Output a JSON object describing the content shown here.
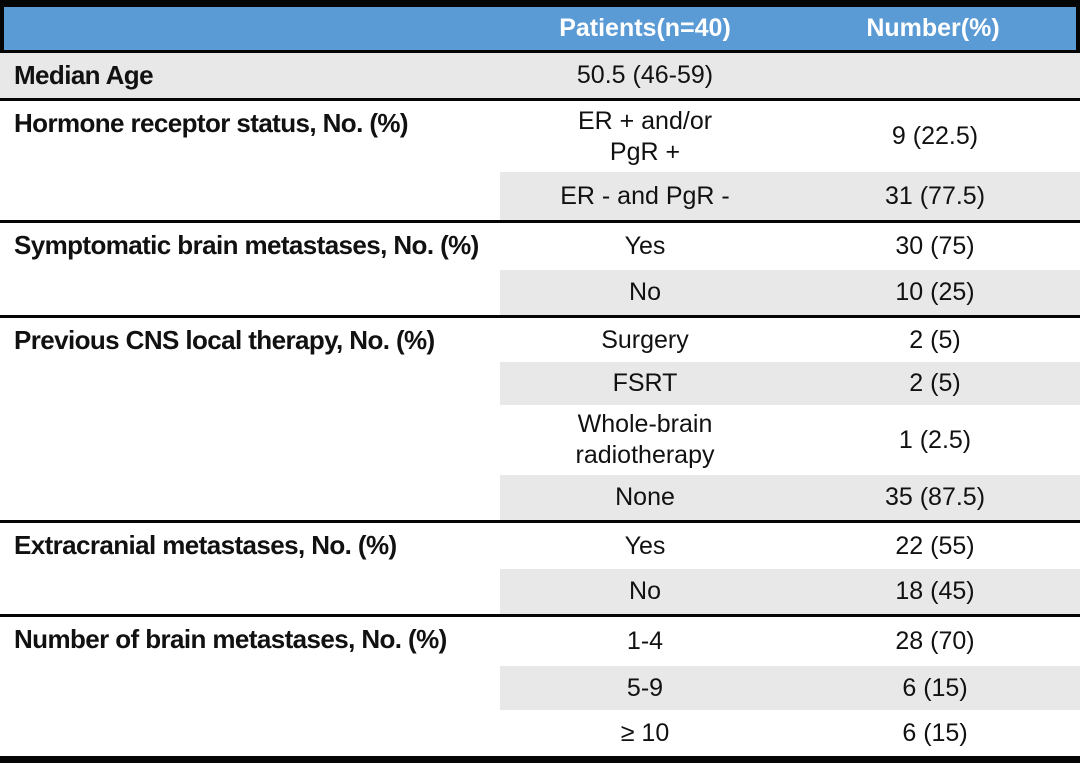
{
  "table": {
    "title": "Patient characteristics table",
    "colors": {
      "header_bg": "#5B9BD5",
      "header_text": "#FFFFFF",
      "stripe": "#E9E8E8",
      "border": "#050505"
    },
    "header": {
      "col1": "",
      "patients": "Patients(n=40)",
      "number": "Number(%)"
    },
    "sections": [
      {
        "label": "Median Age",
        "rows": [
          {
            "value": "50.5 (46-59)",
            "number": ""
          }
        ]
      },
      {
        "label": "Hormone receptor status, No. (%)",
        "rows": [
          {
            "value": "ER + and/or\nPgR +",
            "number": "9 (22.5)"
          },
          {
            "value": "ER - and PgR -",
            "number": "31 (77.5)"
          }
        ]
      },
      {
        "label": "Symptomatic brain metastases, No. (%)",
        "rows": [
          {
            "value": "Yes",
            "number": "30 (75)"
          },
          {
            "value": "No",
            "number": "10 (25)"
          }
        ]
      },
      {
        "label": "Previous CNS local therapy, No. (%)",
        "rows": [
          {
            "value": "Surgery",
            "number": "2 (5)"
          },
          {
            "value": "FSRT",
            "number": "2 (5)"
          },
          {
            "value": "Whole-brain\nradiotherapy",
            "number": "1 (2.5)"
          },
          {
            "value": "None",
            "number": "35 (87.5)"
          }
        ]
      },
      {
        "label": "Extracranial metastases, No. (%)",
        "rows": [
          {
            "value": "Yes",
            "number": "22 (55)"
          },
          {
            "value": "No",
            "number": "18 (45)"
          }
        ]
      },
      {
        "label": "Number of brain metastases, No. (%)",
        "rows": [
          {
            "value": "1-4",
            "number": "28 (70)"
          },
          {
            "value": "5-9",
            "number": "6 (15)"
          },
          {
            "value": "≥ 10",
            "number": "6 (15)"
          }
        ]
      }
    ]
  }
}
